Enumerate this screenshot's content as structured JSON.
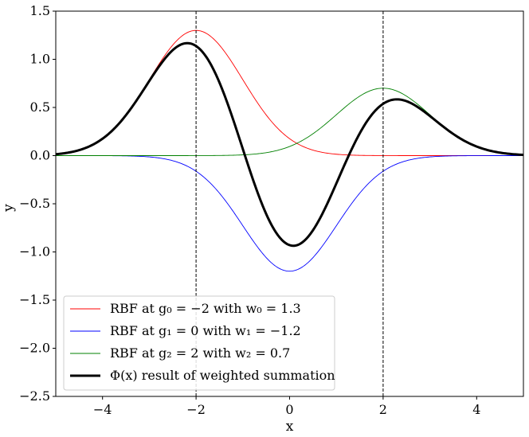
{
  "chart_data": {
    "type": "line",
    "xlabel": "x",
    "ylabel": "y",
    "xlim": [
      -5,
      5
    ],
    "ylim": [
      -2.5,
      1.5
    ],
    "xticks": [
      -4,
      -2,
      0,
      2,
      4
    ],
    "xtick_labels": [
      "−4",
      "−2",
      "0",
      "2",
      "4"
    ],
    "yticks": [
      -2.5,
      -2.0,
      -1.5,
      -1.0,
      -0.5,
      0.0,
      0.5,
      1.0,
      1.5
    ],
    "ytick_labels": [
      "−2.5",
      "−2.0",
      "−1.5",
      "−1.0",
      "−0.5",
      "0.0",
      "0.5",
      "1.0",
      "1.5"
    ],
    "grid": false,
    "legend_position": "lower-left",
    "vlines": [
      -2,
      2
    ],
    "series": [
      {
        "name": "RBF at g₀ = −2 with w₀ = 1.3",
        "center": -2,
        "weight": 1.3,
        "color": "#ff0000",
        "line_width": "thin"
      },
      {
        "name": "RBF at g₁ = 0 with w₁ = −1.2",
        "center": 0,
        "weight": -1.2,
        "color": "#0000ff",
        "line_width": "thin"
      },
      {
        "name": "RBF at g₂ = 2 with w₂ = 0.7",
        "center": 2,
        "weight": 0.7,
        "color": "#008000",
        "line_width": "thin"
      },
      {
        "name": "Φ(x) result of weighted summation",
        "kind": "sum",
        "color": "#000000",
        "line_width": "thick"
      }
    ]
  }
}
